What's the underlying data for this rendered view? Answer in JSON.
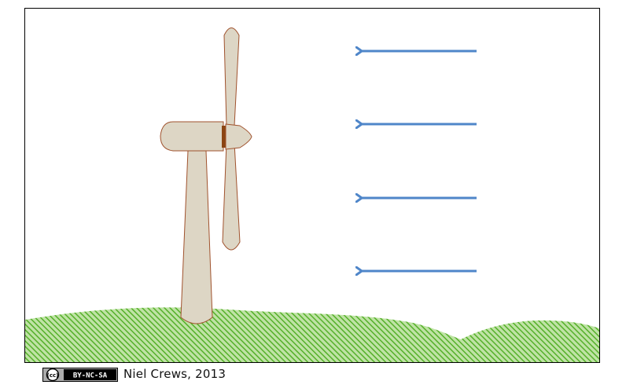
{
  "license": {
    "cc_symbol": "(cc)",
    "badge_text": "BY-NC-SA"
  },
  "credit": {
    "text": "Niel Crews, 2013"
  },
  "colors": {
    "turbine_fill": "#ddd6c5",
    "turbine_stroke": "#a0522d",
    "hub_band": "#8b4513",
    "wind_arrow": "#4f86c9",
    "grass": "#6cbf3c",
    "frame": "#000000"
  },
  "wind": {
    "direction": "left",
    "arrow_count": 4
  }
}
